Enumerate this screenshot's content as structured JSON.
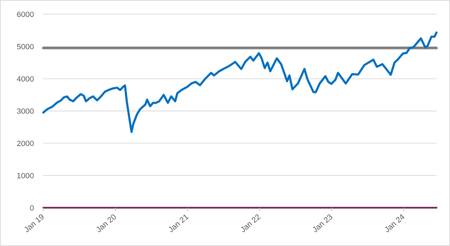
{
  "chart_data": {
    "type": "line",
    "title": "",
    "xlabel": "",
    "ylabel": "",
    "ylim": [
      0,
      6000
    ],
    "yticks": [
      0,
      1000,
      2000,
      3000,
      4000,
      5000,
      6000
    ],
    "xticks": [
      {
        "label": "Jan 19",
        "x": "2019-01-01"
      },
      {
        "label": "Jan 20",
        "x": "2020-01-01"
      },
      {
        "label": "Jan 21",
        "x": "2021-01-01"
      },
      {
        "label": "Jan 22",
        "x": "2022-01-01"
      },
      {
        "label": "Jan 23",
        "x": "2023-01-01"
      },
      {
        "label": "Jan 24",
        "x": "2024-01-01"
      }
    ],
    "xlim": [
      "2019-01-01",
      "2024-06-15"
    ],
    "grid": true,
    "legend": "none",
    "series": [
      {
        "color": "#0070c0",
        "points": [
          [
            "2019-01-01",
            2950
          ],
          [
            "2019-01-20",
            3050
          ],
          [
            "2019-02-15",
            3130
          ],
          [
            "2019-03-10",
            3250
          ],
          [
            "2019-04-01",
            3330
          ],
          [
            "2019-04-15",
            3420
          ],
          [
            "2019-05-01",
            3450
          ],
          [
            "2019-05-15",
            3350
          ],
          [
            "2019-06-01",
            3300
          ],
          [
            "2019-06-20",
            3420
          ],
          [
            "2019-07-10",
            3520
          ],
          [
            "2019-07-25",
            3470
          ],
          [
            "2019-08-05",
            3300
          ],
          [
            "2019-08-25",
            3400
          ],
          [
            "2019-09-10",
            3450
          ],
          [
            "2019-10-01",
            3330
          ],
          [
            "2019-10-20",
            3450
          ],
          [
            "2019-11-10",
            3600
          ],
          [
            "2019-12-01",
            3660
          ],
          [
            "2019-12-20",
            3700
          ],
          [
            "2020-01-10",
            3720
          ],
          [
            "2020-01-25",
            3650
          ],
          [
            "2020-02-10",
            3750
          ],
          [
            "2020-02-19",
            3790
          ],
          [
            "2020-02-28",
            3300
          ],
          [
            "2020-03-10",
            2850
          ],
          [
            "2020-03-23",
            2350
          ],
          [
            "2020-04-01",
            2600
          ],
          [
            "2020-04-20",
            2900
          ],
          [
            "2020-05-05",
            3050
          ],
          [
            "2020-06-01",
            3200
          ],
          [
            "2020-06-10",
            3350
          ],
          [
            "2020-06-25",
            3150
          ],
          [
            "2020-07-10",
            3250
          ],
          [
            "2020-07-25",
            3250
          ],
          [
            "2020-08-10",
            3300
          ],
          [
            "2020-09-02",
            3500
          ],
          [
            "2020-09-23",
            3250
          ],
          [
            "2020-10-10",
            3450
          ],
          [
            "2020-10-30",
            3300
          ],
          [
            "2020-11-10",
            3550
          ],
          [
            "2020-12-01",
            3650
          ],
          [
            "2020-12-31",
            3750
          ],
          [
            "2021-01-20",
            3850
          ],
          [
            "2021-02-10",
            3900
          ],
          [
            "2021-03-05",
            3800
          ],
          [
            "2021-04-01",
            4000
          ],
          [
            "2021-04-30",
            4180
          ],
          [
            "2021-05-15",
            4100
          ],
          [
            "2021-06-10",
            4230
          ],
          [
            "2021-07-01",
            4300
          ],
          [
            "2021-08-01",
            4400
          ],
          [
            "2021-08-30",
            4520
          ],
          [
            "2021-09-30",
            4300
          ],
          [
            "2021-10-20",
            4520
          ],
          [
            "2021-11-15",
            4680
          ],
          [
            "2021-11-30",
            4560
          ],
          [
            "2021-12-28",
            4790
          ],
          [
            "2022-01-10",
            4650
          ],
          [
            "2022-01-27",
            4330
          ],
          [
            "2022-02-10",
            4500
          ],
          [
            "2022-02-24",
            4230
          ],
          [
            "2022-03-29",
            4630
          ],
          [
            "2022-04-20",
            4450
          ],
          [
            "2022-05-20",
            3920
          ],
          [
            "2022-06-01",
            4100
          ],
          [
            "2022-06-16",
            3670
          ],
          [
            "2022-07-15",
            3860
          ],
          [
            "2022-08-16",
            4300
          ],
          [
            "2022-09-01",
            3970
          ],
          [
            "2022-09-30",
            3590
          ],
          [
            "2022-10-12",
            3580
          ],
          [
            "2022-11-01",
            3850
          ],
          [
            "2022-11-30",
            4080
          ],
          [
            "2022-12-15",
            3900
          ],
          [
            "2022-12-30",
            3840
          ],
          [
            "2023-01-20",
            3970
          ],
          [
            "2023-02-02",
            4180
          ],
          [
            "2023-03-13",
            3850
          ],
          [
            "2023-04-15",
            4140
          ],
          [
            "2023-05-15",
            4130
          ],
          [
            "2023-06-15",
            4420
          ],
          [
            "2023-07-31",
            4590
          ],
          [
            "2023-08-18",
            4370
          ],
          [
            "2023-09-15",
            4450
          ],
          [
            "2023-10-27",
            4120
          ],
          [
            "2023-11-15",
            4500
          ],
          [
            "2023-12-01",
            4590
          ],
          [
            "2023-12-28",
            4780
          ],
          [
            "2024-01-15",
            4800
          ],
          [
            "2024-02-01",
            4950
          ],
          [
            "2024-02-20",
            4980
          ],
          [
            "2024-03-10",
            5120
          ],
          [
            "2024-03-28",
            5250
          ],
          [
            "2024-04-19",
            4970
          ],
          [
            "2024-05-01",
            5020
          ],
          [
            "2024-05-20",
            5300
          ],
          [
            "2024-06-05",
            5300
          ],
          [
            "2024-06-15",
            5430
          ]
        ]
      },
      {
        "color": "#7f7f7f",
        "points": [
          [
            "2019-01-01",
            4950
          ],
          [
            "2024-06-15",
            4950
          ]
        ]
      },
      {
        "color": "#7b2c5f",
        "points": [
          [
            "2019-01-01",
            0
          ],
          [
            "2024-06-15",
            0
          ]
        ]
      }
    ]
  }
}
